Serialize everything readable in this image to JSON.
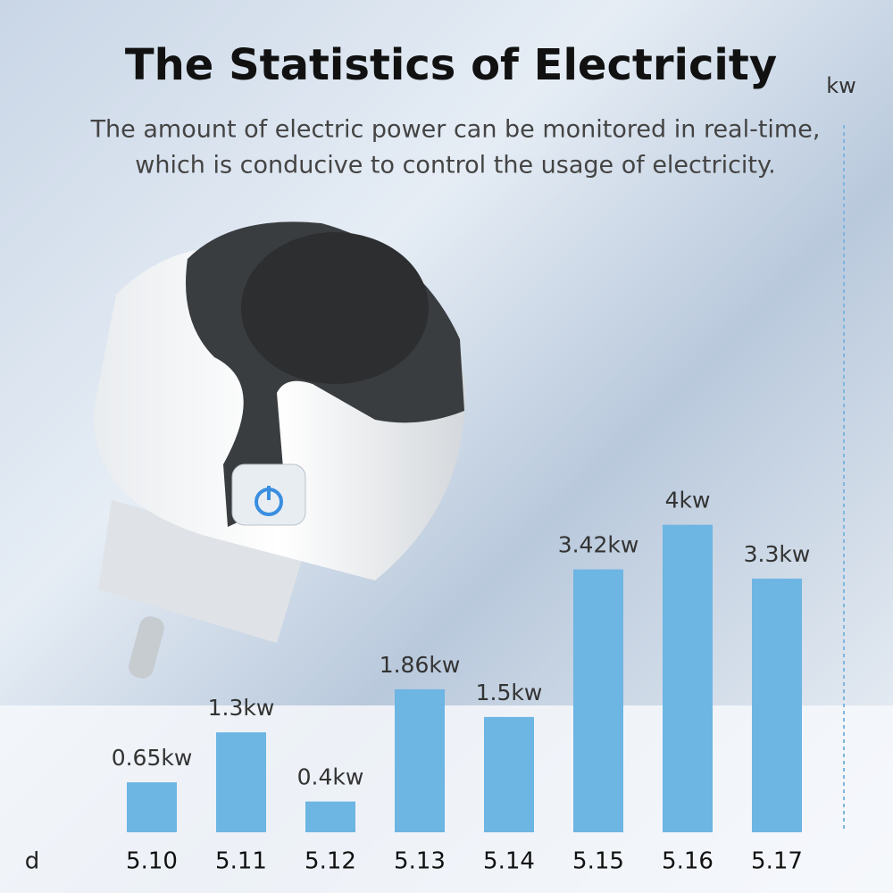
{
  "chart_data": {
    "type": "bar",
    "title": "The Statistics of Electricity",
    "subtitle": [
      "The amount of electric power can be monitored in real-time,",
      "which is conducive to control the usage of electricity."
    ],
    "x_label": "d",
    "y_label": "kw",
    "categories": [
      "5.10",
      "5.11",
      "5.12",
      "5.13",
      "5.14",
      "5.15",
      "5.16",
      "5.17"
    ],
    "values": [
      0.65,
      1.3,
      0.4,
      1.86,
      1.5,
      3.42,
      4,
      3.3
    ],
    "value_labels": [
      "0.65kw",
      "1.3kw",
      "0.4kw",
      "1.86kw",
      "1.5kw",
      "3.42kw",
      "4kw",
      "3.3kw"
    ],
    "color": "#6db5e3",
    "ylim": [
      0,
      9.2
    ]
  }
}
